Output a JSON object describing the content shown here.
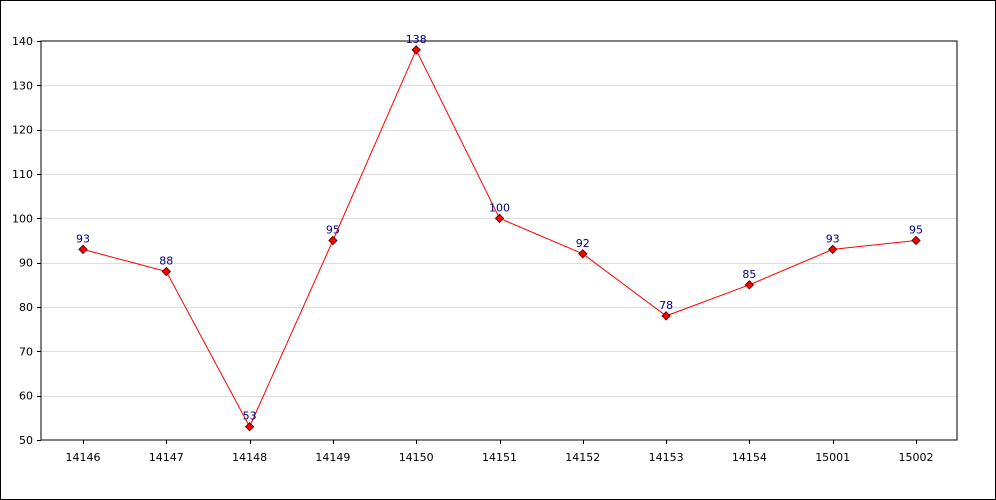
{
  "colors": {
    "line": "#ff0000",
    "marker_fill": "#ff0000",
    "marker_stroke": "#660000",
    "data_label": "#000080",
    "grid": "#dddddd",
    "axis": "#000000"
  },
  "chart_data": {
    "type": "line",
    "title": "",
    "xlabel": "",
    "ylabel": "",
    "categories": [
      "14146",
      "14147",
      "14148",
      "14149",
      "14150",
      "14151",
      "14152",
      "14153",
      "14154",
      "15001",
      "15002"
    ],
    "series": [
      {
        "values": [
          93,
          88,
          53,
          95,
          138,
          100,
          92,
          78,
          85,
          93,
          95
        ]
      }
    ],
    "ylim": [
      50,
      140
    ],
    "yticks": [
      50,
      60,
      70,
      80,
      90,
      100,
      110,
      120,
      130,
      140
    ],
    "grid": true,
    "marker": "diamond",
    "data_labels": true
  }
}
